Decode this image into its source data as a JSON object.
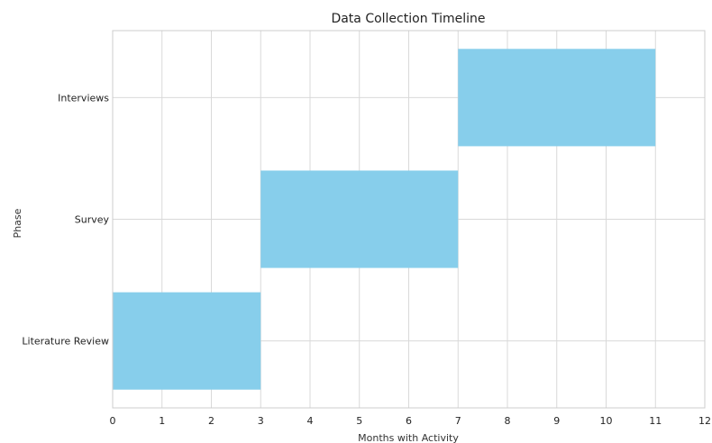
{
  "chart_data": {
    "type": "bar",
    "orientation": "horizontal",
    "title": "Data Collection Timeline",
    "xlabel": "Months with Activity",
    "ylabel": "Phase",
    "xlim": [
      0,
      12
    ],
    "xticks": [
      0,
      1,
      2,
      3,
      4,
      5,
      6,
      7,
      8,
      9,
      10,
      11,
      12
    ],
    "categories": [
      "Literature Review",
      "Survey",
      "Interviews"
    ],
    "bars": [
      {
        "category": "Literature Review",
        "start": 0,
        "end": 3
      },
      {
        "category": "Survey",
        "start": 3,
        "end": 7
      },
      {
        "category": "Interviews",
        "start": 7,
        "end": 11
      }
    ],
    "bar_color": "#87ceeb",
    "grid": true,
    "legend": false
  }
}
